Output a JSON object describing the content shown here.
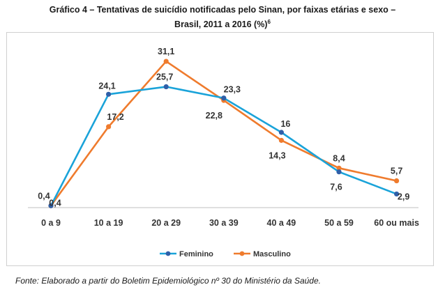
{
  "title_line1": "Gráfico 4 – Tentativas de suicídio notificadas pelo Sinan, por faixas etárias e sexo –",
  "title_line2": "Brasil, 2011 a 2016 (%)",
  "title_sup": "6",
  "source": "Fonte: Elaborado a partir do Boletim Epidemiológico nº 30 do Ministério da Saúde.",
  "colors": {
    "feminino": "#1aa3d9",
    "masculino": "#ef7b2d",
    "feminino_marker": "#2f5fa8",
    "axis": "#bfbfbf"
  },
  "chart_data": {
    "type": "line",
    "title": "Gráfico 4 – Tentativas de suicídio notificadas pelo Sinan, por faixas etárias e sexo – Brasil, 2011 a 2016 (%)",
    "categories": [
      "0 a 9",
      "10 a 19",
      "20 a 29",
      "30 a 39",
      "40 a 49",
      "50 a 59",
      "60 ou mais"
    ],
    "series": [
      {
        "name": "Feminino",
        "values": [
          0.4,
          24.1,
          25.7,
          23.3,
          16,
          7.6,
          2.9
        ],
        "labels": [
          "0,4",
          "24,1",
          "25,7",
          "23,3",
          "16",
          "7,6",
          "2,9"
        ]
      },
      {
        "name": "Masculino",
        "values": [
          0.4,
          17.2,
          31.1,
          22.8,
          14.3,
          8.4,
          5.7
        ],
        "labels": [
          "0,4",
          "17,2",
          "31,1",
          "22,8",
          "14,3",
          "8,4",
          "5,7"
        ]
      }
    ],
    "legend": "bottom",
    "grid": false,
    "ylim": [
      0,
      32
    ]
  }
}
